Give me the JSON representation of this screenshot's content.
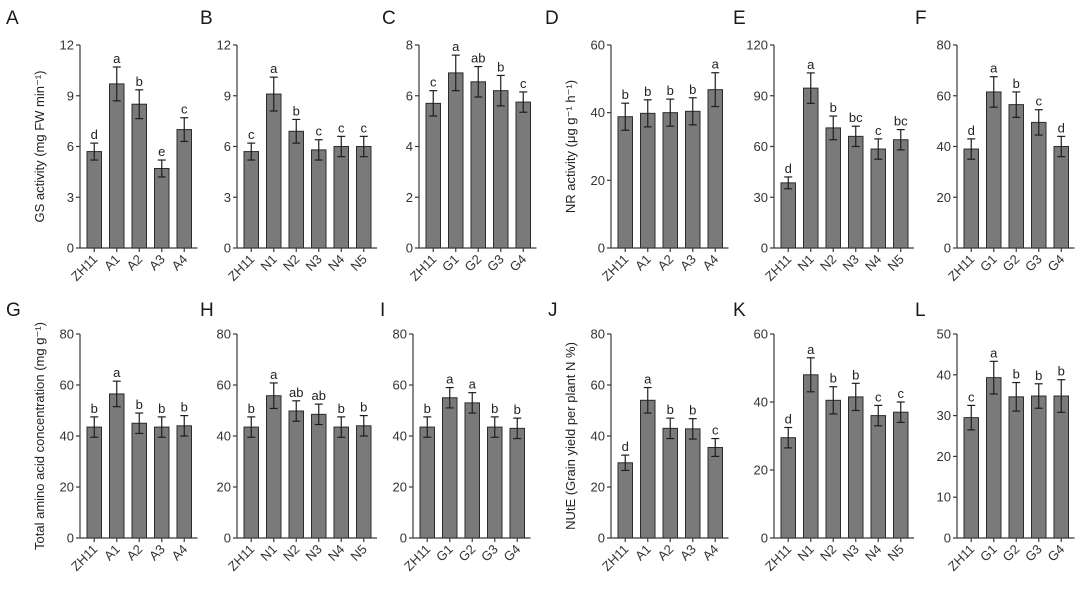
{
  "figure": {
    "background": "#ffffff",
    "bar_color": "#7a7a7a",
    "bar_edge_color": "#2c2c2c"
  },
  "chart_data": [
    {
      "panel": "A",
      "type": "bar",
      "ylabel": "GS activity (mg FW min⁻¹)",
      "ylim": [
        0,
        12
      ],
      "yticks": [
        0,
        3,
        6,
        9,
        12
      ],
      "categories": [
        "ZH11",
        "A1",
        "A2",
        "A3",
        "A4"
      ],
      "values": [
        5.7,
        9.7,
        8.5,
        4.7,
        7.0
      ],
      "errors": [
        0.5,
        1.0,
        0.85,
        0.5,
        0.7
      ],
      "significance": [
        "d",
        "a",
        "b",
        "e",
        "c"
      ]
    },
    {
      "panel": "B",
      "type": "bar",
      "ylabel": "",
      "ylim": [
        0,
        12
      ],
      "yticks": [
        0,
        3,
        6,
        9,
        12
      ],
      "categories": [
        "ZH11",
        "N1",
        "N2",
        "N3",
        "N4",
        "N5"
      ],
      "values": [
        5.7,
        9.1,
        6.9,
        5.8,
        6.0,
        6.0
      ],
      "errors": [
        0.5,
        1.0,
        0.7,
        0.6,
        0.6,
        0.6
      ],
      "significance": [
        "c",
        "a",
        "b",
        "c",
        "c",
        "c"
      ]
    },
    {
      "panel": "C",
      "type": "bar",
      "ylabel": "",
      "ylim": [
        0,
        8
      ],
      "yticks": [
        0,
        2,
        4,
        6,
        8
      ],
      "categories": [
        "ZH11",
        "G1",
        "G2",
        "G3",
        "G4"
      ],
      "values": [
        5.7,
        6.9,
        6.55,
        6.2,
        5.75
      ],
      "errors": [
        0.5,
        0.7,
        0.6,
        0.6,
        0.4
      ],
      "significance": [
        "c",
        "a",
        "ab",
        "b",
        "c"
      ]
    },
    {
      "panel": "D",
      "type": "bar",
      "ylabel": "NR activity (μg g⁻¹ h⁻¹)",
      "ylim": [
        0,
        60
      ],
      "yticks": [
        0,
        20,
        40,
        60
      ],
      "categories": [
        "ZH11",
        "A1",
        "A2",
        "A3",
        "A4"
      ],
      "values": [
        38.8,
        39.8,
        40.0,
        40.4,
        46.8
      ],
      "errors": [
        4,
        4,
        4,
        4,
        5
      ],
      "significance": [
        "b",
        "b",
        "b",
        "b",
        "a"
      ]
    },
    {
      "panel": "E",
      "type": "bar",
      "ylabel": "",
      "ylim": [
        0,
        120
      ],
      "yticks": [
        0,
        30,
        60,
        90,
        120
      ],
      "categories": [
        "ZH11",
        "N1",
        "N2",
        "N3",
        "N4",
        "N5"
      ],
      "values": [
        38.5,
        94.5,
        71,
        66,
        58.5,
        64
      ],
      "errors": [
        3.5,
        9,
        7,
        6,
        6,
        6
      ],
      "significance": [
        "d",
        "a",
        "b",
        "bc",
        "c",
        "bc"
      ]
    },
    {
      "panel": "F",
      "type": "bar",
      "ylabel": "",
      "ylim": [
        0,
        80
      ],
      "yticks": [
        0,
        20,
        40,
        60,
        80
      ],
      "categories": [
        "ZH11",
        "G1",
        "G2",
        "G3",
        "G4"
      ],
      "values": [
        39,
        61.5,
        56.5,
        49.5,
        40
      ],
      "errors": [
        4,
        6,
        5,
        5,
        4
      ],
      "significance": [
        "d",
        "a",
        "b",
        "c",
        "d"
      ]
    },
    {
      "panel": "G",
      "type": "bar",
      "ylabel": "Total amino acid concentration (mg g⁻¹)",
      "ylim": [
        0,
        80
      ],
      "yticks": [
        0,
        20,
        40,
        60,
        80
      ],
      "categories": [
        "ZH11",
        "A1",
        "A2",
        "A3",
        "A4"
      ],
      "values": [
        43.5,
        56.5,
        45,
        43.5,
        44
      ],
      "errors": [
        4,
        5,
        4,
        4,
        4
      ],
      "significance": [
        "b",
        "a",
        "b",
        "b",
        "b"
      ]
    },
    {
      "panel": "H",
      "type": "bar",
      "ylabel": "",
      "ylim": [
        0,
        80
      ],
      "yticks": [
        0,
        20,
        40,
        60,
        80
      ],
      "categories": [
        "ZH11",
        "N1",
        "N2",
        "N3",
        "N4",
        "N5"
      ],
      "values": [
        43.5,
        55.8,
        49.8,
        48.5,
        43.5,
        44
      ],
      "errors": [
        4,
        5,
        4,
        4,
        4,
        4
      ],
      "significance": [
        "b",
        "a",
        "ab",
        "ab",
        "b",
        "b"
      ]
    },
    {
      "panel": "I",
      "type": "bar",
      "ylabel": "",
      "ylim": [
        0,
        80
      ],
      "yticks": [
        0,
        20,
        40,
        60,
        80
      ],
      "categories": [
        "ZH11",
        "G1",
        "G2",
        "G3",
        "G4"
      ],
      "values": [
        43.5,
        55,
        53,
        43.5,
        43
      ],
      "errors": [
        4,
        4,
        4,
        4,
        4
      ],
      "significance": [
        "b",
        "a",
        "a",
        "b",
        "b"
      ]
    },
    {
      "panel": "J",
      "type": "bar",
      "ylabel": "NUtE (Grain yield per plant N %)",
      "ylim": [
        0,
        80
      ],
      "yticks": [
        0,
        20,
        40,
        60,
        80
      ],
      "categories": [
        "ZH11",
        "A1",
        "A2",
        "A3",
        "A4"
      ],
      "values": [
        29.5,
        54,
        43,
        42.8,
        35.5
      ],
      "errors": [
        3,
        5,
        4,
        4,
        3.5
      ],
      "significance": [
        "d",
        "a",
        "b",
        "b",
        "c"
      ]
    },
    {
      "panel": "K",
      "type": "bar",
      "ylabel": "",
      "ylim": [
        0,
        60
      ],
      "yticks": [
        0,
        20,
        40,
        60
      ],
      "categories": [
        "ZH11",
        "N1",
        "N2",
        "N3",
        "N4",
        "N5"
      ],
      "values": [
        29.5,
        48,
        40.5,
        41.5,
        36,
        37
      ],
      "errors": [
        3,
        5,
        4,
        4,
        3,
        3
      ],
      "significance": [
        "d",
        "a",
        "b",
        "b",
        "c",
        "c"
      ]
    },
    {
      "panel": "L",
      "type": "bar",
      "ylabel": "",
      "ylim": [
        0,
        50
      ],
      "yticks": [
        0,
        10,
        20,
        30,
        40,
        50
      ],
      "categories": [
        "ZH11",
        "G1",
        "G2",
        "G3",
        "G4"
      ],
      "values": [
        29.5,
        39.3,
        34.6,
        34.8,
        34.8
      ],
      "errors": [
        3,
        4,
        3.5,
        3,
        4
      ],
      "significance": [
        "c",
        "a",
        "b",
        "b",
        "b"
      ]
    }
  ]
}
